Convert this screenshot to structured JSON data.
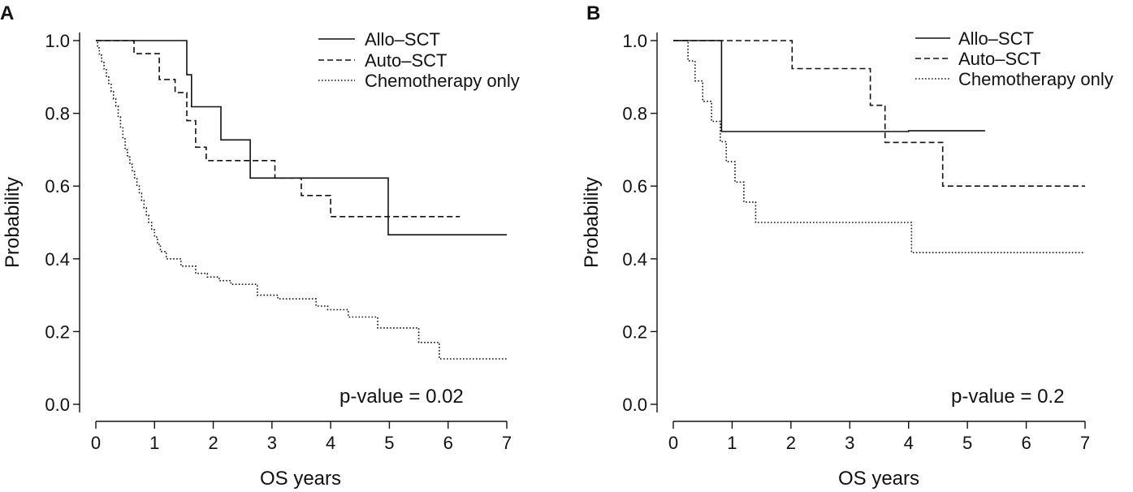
{
  "chart_data": [
    {
      "type": "line",
      "subtype": "kaplan-meier step curves",
      "panel": "A",
      "title": "",
      "xlabel": "OS years",
      "ylabel": "Probability",
      "xlim": [
        0,
        7
      ],
      "ylim": [
        0,
        1
      ],
      "xticks": [
        "0",
        "1",
        "2",
        "3",
        "4",
        "5",
        "6",
        "7"
      ],
      "yticks": [
        "0.0",
        "0.2",
        "0.4",
        "0.6",
        "0.8",
        "1.0"
      ],
      "legend_position": "top-right",
      "annotation": "p-value = 0.02",
      "series": [
        {
          "name": "Allo–SCT",
          "style": "solid",
          "x": [
            0,
            1.55,
            1.63,
            1.7,
            2.13,
            2.63,
            4.98,
            7.0
          ],
          "y": [
            1.0,
            0.906,
            0.818,
            0.818,
            0.727,
            0.622,
            0.466,
            0.466
          ]
        },
        {
          "name": "Auto–SCT",
          "style": "dashed",
          "x": [
            0,
            0.65,
            1.08,
            1.35,
            1.55,
            1.7,
            1.88,
            2.05,
            3.05,
            3.5,
            4.0,
            6.2
          ],
          "y": [
            1.0,
            0.964,
            0.893,
            0.857,
            0.78,
            0.707,
            0.67,
            0.67,
            0.622,
            0.574,
            0.516,
            0.516
          ]
        },
        {
          "name": "Chemotherapy only",
          "style": "dotted",
          "x": [
            0,
            0.03,
            0.06,
            0.1,
            0.14,
            0.18,
            0.22,
            0.26,
            0.3,
            0.34,
            0.38,
            0.42,
            0.46,
            0.5,
            0.54,
            0.58,
            0.62,
            0.66,
            0.7,
            0.74,
            0.78,
            0.82,
            0.86,
            0.9,
            0.95,
            1.0,
            1.05,
            1.1,
            1.2,
            1.45,
            1.7,
            1.9,
            2.1,
            2.3,
            2.75,
            3.1,
            3.75,
            3.95,
            4.3,
            4.8,
            5.5,
            5.85,
            7.0
          ],
          "y": [
            1.0,
            0.98,
            0.96,
            0.94,
            0.92,
            0.9,
            0.88,
            0.86,
            0.84,
            0.82,
            0.79,
            0.76,
            0.73,
            0.7,
            0.68,
            0.66,
            0.64,
            0.62,
            0.6,
            0.58,
            0.56,
            0.54,
            0.52,
            0.5,
            0.48,
            0.46,
            0.44,
            0.42,
            0.4,
            0.38,
            0.36,
            0.35,
            0.34,
            0.33,
            0.3,
            0.29,
            0.27,
            0.26,
            0.24,
            0.21,
            0.17,
            0.125,
            0.125
          ]
        }
      ]
    },
    {
      "type": "line",
      "subtype": "kaplan-meier step curves",
      "panel": "B",
      "title": "",
      "xlabel": "OS years",
      "ylabel": "Probability",
      "xlim": [
        0,
        7
      ],
      "ylim": [
        0,
        1
      ],
      "xticks": [
        "0",
        "1",
        "2",
        "3",
        "4",
        "5",
        "6",
        "7"
      ],
      "yticks": [
        "0.0",
        "0.2",
        "0.4",
        "0.6",
        "0.8",
        "1.0"
      ],
      "legend_position": "top-right",
      "annotation": "p-value = 0.2",
      "series": [
        {
          "name": "Allo–SCT",
          "style": "solid",
          "x": [
            0,
            0.82,
            4.0,
            5.3
          ],
          "y": [
            1.0,
            0.75,
            0.752,
            0.752
          ]
        },
        {
          "name": "Auto–SCT",
          "style": "dashed",
          "x": [
            0,
            2.02,
            3.35,
            3.6,
            4.58,
            7.0
          ],
          "y": [
            1.0,
            0.923,
            0.822,
            0.72,
            0.6,
            0.6
          ]
        },
        {
          "name": "Chemotherapy only",
          "style": "dotted",
          "x": [
            0,
            0.25,
            0.37,
            0.5,
            0.65,
            0.8,
            0.9,
            1.05,
            1.2,
            1.4,
            1.68,
            4.05,
            7.0
          ],
          "y": [
            1.0,
            0.944,
            0.889,
            0.833,
            0.778,
            0.722,
            0.667,
            0.611,
            0.556,
            0.5,
            0.5,
            0.417,
            0.417
          ]
        }
      ]
    }
  ]
}
